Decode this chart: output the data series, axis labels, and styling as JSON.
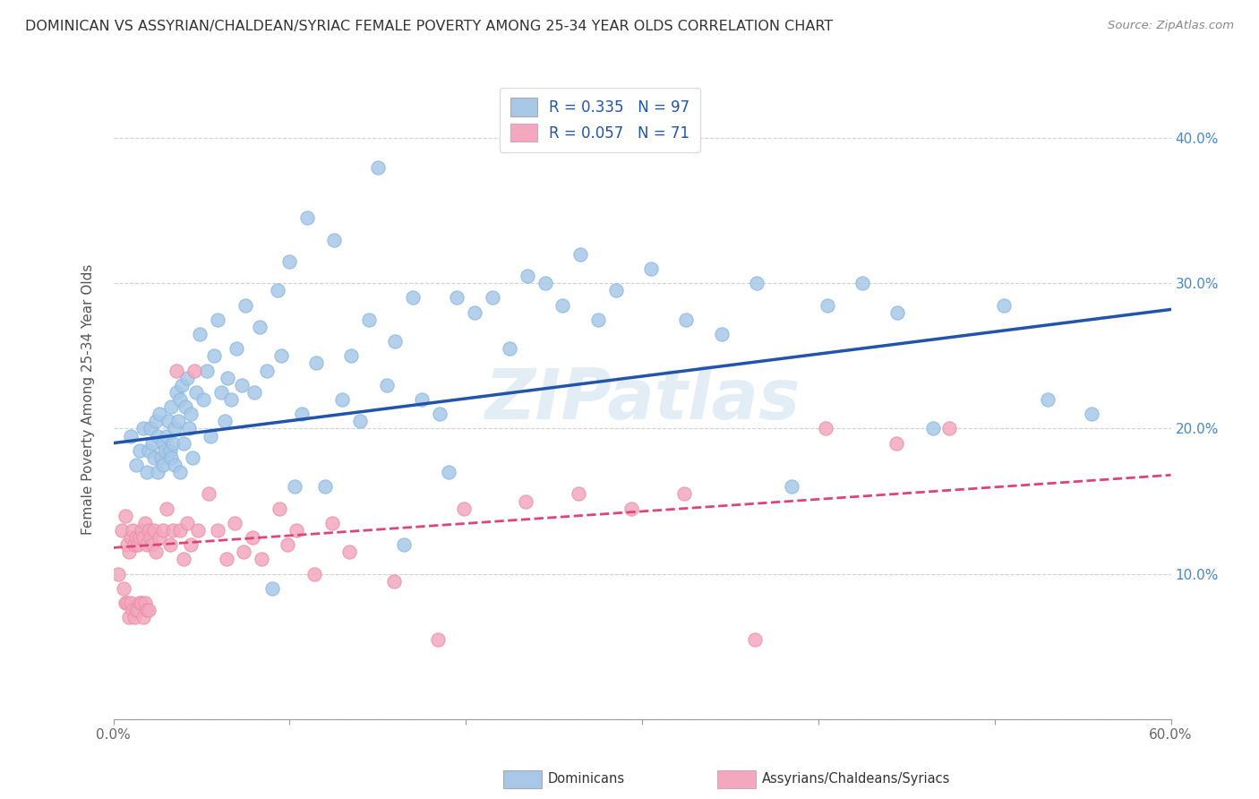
{
  "title": "DOMINICAN VS ASSYRIAN/CHALDEAN/SYRIAC FEMALE POVERTY AMONG 25-34 YEAR OLDS CORRELATION CHART",
  "source": "Source: ZipAtlas.com",
  "ylabel": "Female Poverty Among 25-34 Year Olds",
  "xlim": [
    0,
    0.6
  ],
  "ylim": [
    0,
    0.44
  ],
  "xticks": [
    0.0,
    0.1,
    0.2,
    0.3,
    0.4,
    0.5,
    0.6
  ],
  "xticklabels": [
    "0.0%",
    "",
    "",
    "",
    "",
    "",
    "60.0%"
  ],
  "yticks": [
    0.0,
    0.1,
    0.2,
    0.3,
    0.4
  ],
  "yleft_labels": [
    "",
    "",
    "",
    "",
    ""
  ],
  "yright_labels": [
    "",
    "10.0%",
    "20.0%",
    "30.0%",
    "40.0%"
  ],
  "dominican_R": 0.335,
  "dominican_N": 97,
  "assyrian_R": 0.057,
  "assyrian_N": 71,
  "dominican_color": "#A8C8E8",
  "assyrian_color": "#F4A8C0",
  "dominican_line_color": "#2255AA",
  "assyrian_line_color": "#DD4477",
  "legend_label_1": "Dominicans",
  "legend_label_2": "Assyrians/Chaldeans/Syriacs",
  "watermark": "ZIPatlas",
  "dominican_trend_x0": 0.0,
  "dominican_trend_y0": 0.19,
  "dominican_trend_x1": 0.6,
  "dominican_trend_y1": 0.282,
  "assyrian_trend_x0": 0.0,
  "assyrian_trend_y0": 0.118,
  "assyrian_trend_x1": 0.6,
  "assyrian_trend_y1": 0.168,
  "dominican_x": [
    0.01,
    0.013,
    0.015,
    0.017,
    0.019,
    0.02,
    0.021,
    0.022,
    0.023,
    0.024,
    0.025,
    0.025,
    0.026,
    0.027,
    0.028,
    0.028,
    0.029,
    0.03,
    0.031,
    0.032,
    0.033,
    0.033,
    0.034,
    0.035,
    0.035,
    0.036,
    0.037,
    0.038,
    0.038,
    0.039,
    0.04,
    0.041,
    0.042,
    0.043,
    0.044,
    0.045,
    0.047,
    0.049,
    0.051,
    0.053,
    0.055,
    0.057,
    0.059,
    0.061,
    0.063,
    0.065,
    0.067,
    0.07,
    0.073,
    0.075,
    0.08,
    0.083,
    0.087,
    0.09,
    0.093,
    0.095,
    0.1,
    0.103,
    0.107,
    0.11,
    0.115,
    0.12,
    0.125,
    0.13,
    0.135,
    0.14,
    0.145,
    0.15,
    0.155,
    0.16,
    0.165,
    0.17,
    0.175,
    0.185,
    0.19,
    0.195,
    0.205,
    0.215,
    0.225,
    0.235,
    0.245,
    0.255,
    0.265,
    0.275,
    0.285,
    0.305,
    0.325,
    0.345,
    0.365,
    0.385,
    0.405,
    0.425,
    0.445,
    0.465,
    0.505,
    0.53,
    0.555
  ],
  "dominican_y": [
    0.195,
    0.175,
    0.185,
    0.2,
    0.17,
    0.185,
    0.2,
    0.19,
    0.18,
    0.205,
    0.195,
    0.17,
    0.21,
    0.18,
    0.19,
    0.175,
    0.185,
    0.195,
    0.205,
    0.185,
    0.215,
    0.18,
    0.19,
    0.2,
    0.175,
    0.225,
    0.205,
    0.22,
    0.17,
    0.23,
    0.19,
    0.215,
    0.235,
    0.2,
    0.21,
    0.18,
    0.225,
    0.265,
    0.22,
    0.24,
    0.195,
    0.25,
    0.275,
    0.225,
    0.205,
    0.235,
    0.22,
    0.255,
    0.23,
    0.285,
    0.225,
    0.27,
    0.24,
    0.09,
    0.295,
    0.25,
    0.315,
    0.16,
    0.21,
    0.345,
    0.245,
    0.16,
    0.33,
    0.22,
    0.25,
    0.205,
    0.275,
    0.38,
    0.23,
    0.26,
    0.12,
    0.29,
    0.22,
    0.21,
    0.17,
    0.29,
    0.28,
    0.29,
    0.255,
    0.305,
    0.3,
    0.285,
    0.32,
    0.275,
    0.295,
    0.31,
    0.275,
    0.265,
    0.3,
    0.16,
    0.285,
    0.3,
    0.28,
    0.2,
    0.285,
    0.22,
    0.21
  ],
  "assyrian_x": [
    0.003,
    0.005,
    0.006,
    0.007,
    0.007,
    0.008,
    0.008,
    0.009,
    0.009,
    0.01,
    0.01,
    0.011,
    0.011,
    0.012,
    0.012,
    0.013,
    0.013,
    0.014,
    0.014,
    0.015,
    0.015,
    0.016,
    0.016,
    0.017,
    0.017,
    0.018,
    0.018,
    0.019,
    0.019,
    0.02,
    0.02,
    0.021,
    0.022,
    0.023,
    0.024,
    0.026,
    0.028,
    0.03,
    0.032,
    0.034,
    0.036,
    0.038,
    0.04,
    0.042,
    0.044,
    0.046,
    0.048,
    0.054,
    0.059,
    0.064,
    0.069,
    0.074,
    0.079,
    0.084,
    0.094,
    0.099,
    0.104,
    0.114,
    0.124,
    0.134,
    0.159,
    0.184,
    0.199,
    0.234,
    0.264,
    0.294,
    0.324,
    0.364,
    0.404,
    0.444,
    0.474
  ],
  "assyrian_y": [
    0.1,
    0.13,
    0.09,
    0.14,
    0.08,
    0.12,
    0.08,
    0.115,
    0.07,
    0.125,
    0.08,
    0.13,
    0.075,
    0.12,
    0.07,
    0.125,
    0.075,
    0.12,
    0.075,
    0.125,
    0.08,
    0.13,
    0.08,
    0.125,
    0.07,
    0.135,
    0.08,
    0.12,
    0.075,
    0.13,
    0.075,
    0.125,
    0.12,
    0.13,
    0.115,
    0.125,
    0.13,
    0.145,
    0.12,
    0.13,
    0.24,
    0.13,
    0.11,
    0.135,
    0.12,
    0.24,
    0.13,
    0.155,
    0.13,
    0.11,
    0.135,
    0.115,
    0.125,
    0.11,
    0.145,
    0.12,
    0.13,
    0.1,
    0.135,
    0.115,
    0.095,
    0.055,
    0.145,
    0.15,
    0.155,
    0.145,
    0.155,
    0.055,
    0.2,
    0.19,
    0.2
  ]
}
